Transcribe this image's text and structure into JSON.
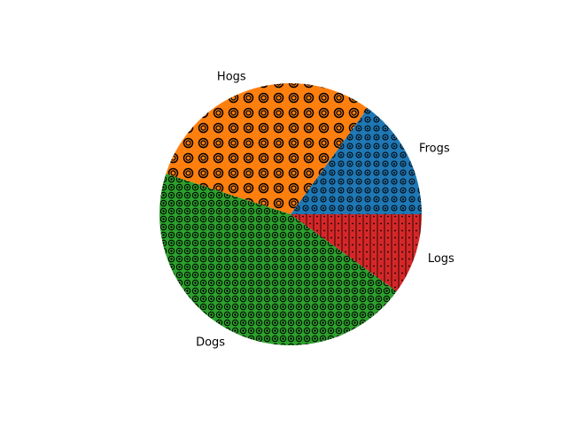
{
  "chart_data": {
    "type": "pie",
    "categories": [
      "Frogs",
      "Hogs",
      "Dogs",
      "Logs"
    ],
    "values": [
      15,
      30,
      45,
      10
    ],
    "colors": [
      "#1f77b4",
      "#ff7f0e",
      "#2ca02c",
      "#d62728"
    ]
  }
}
